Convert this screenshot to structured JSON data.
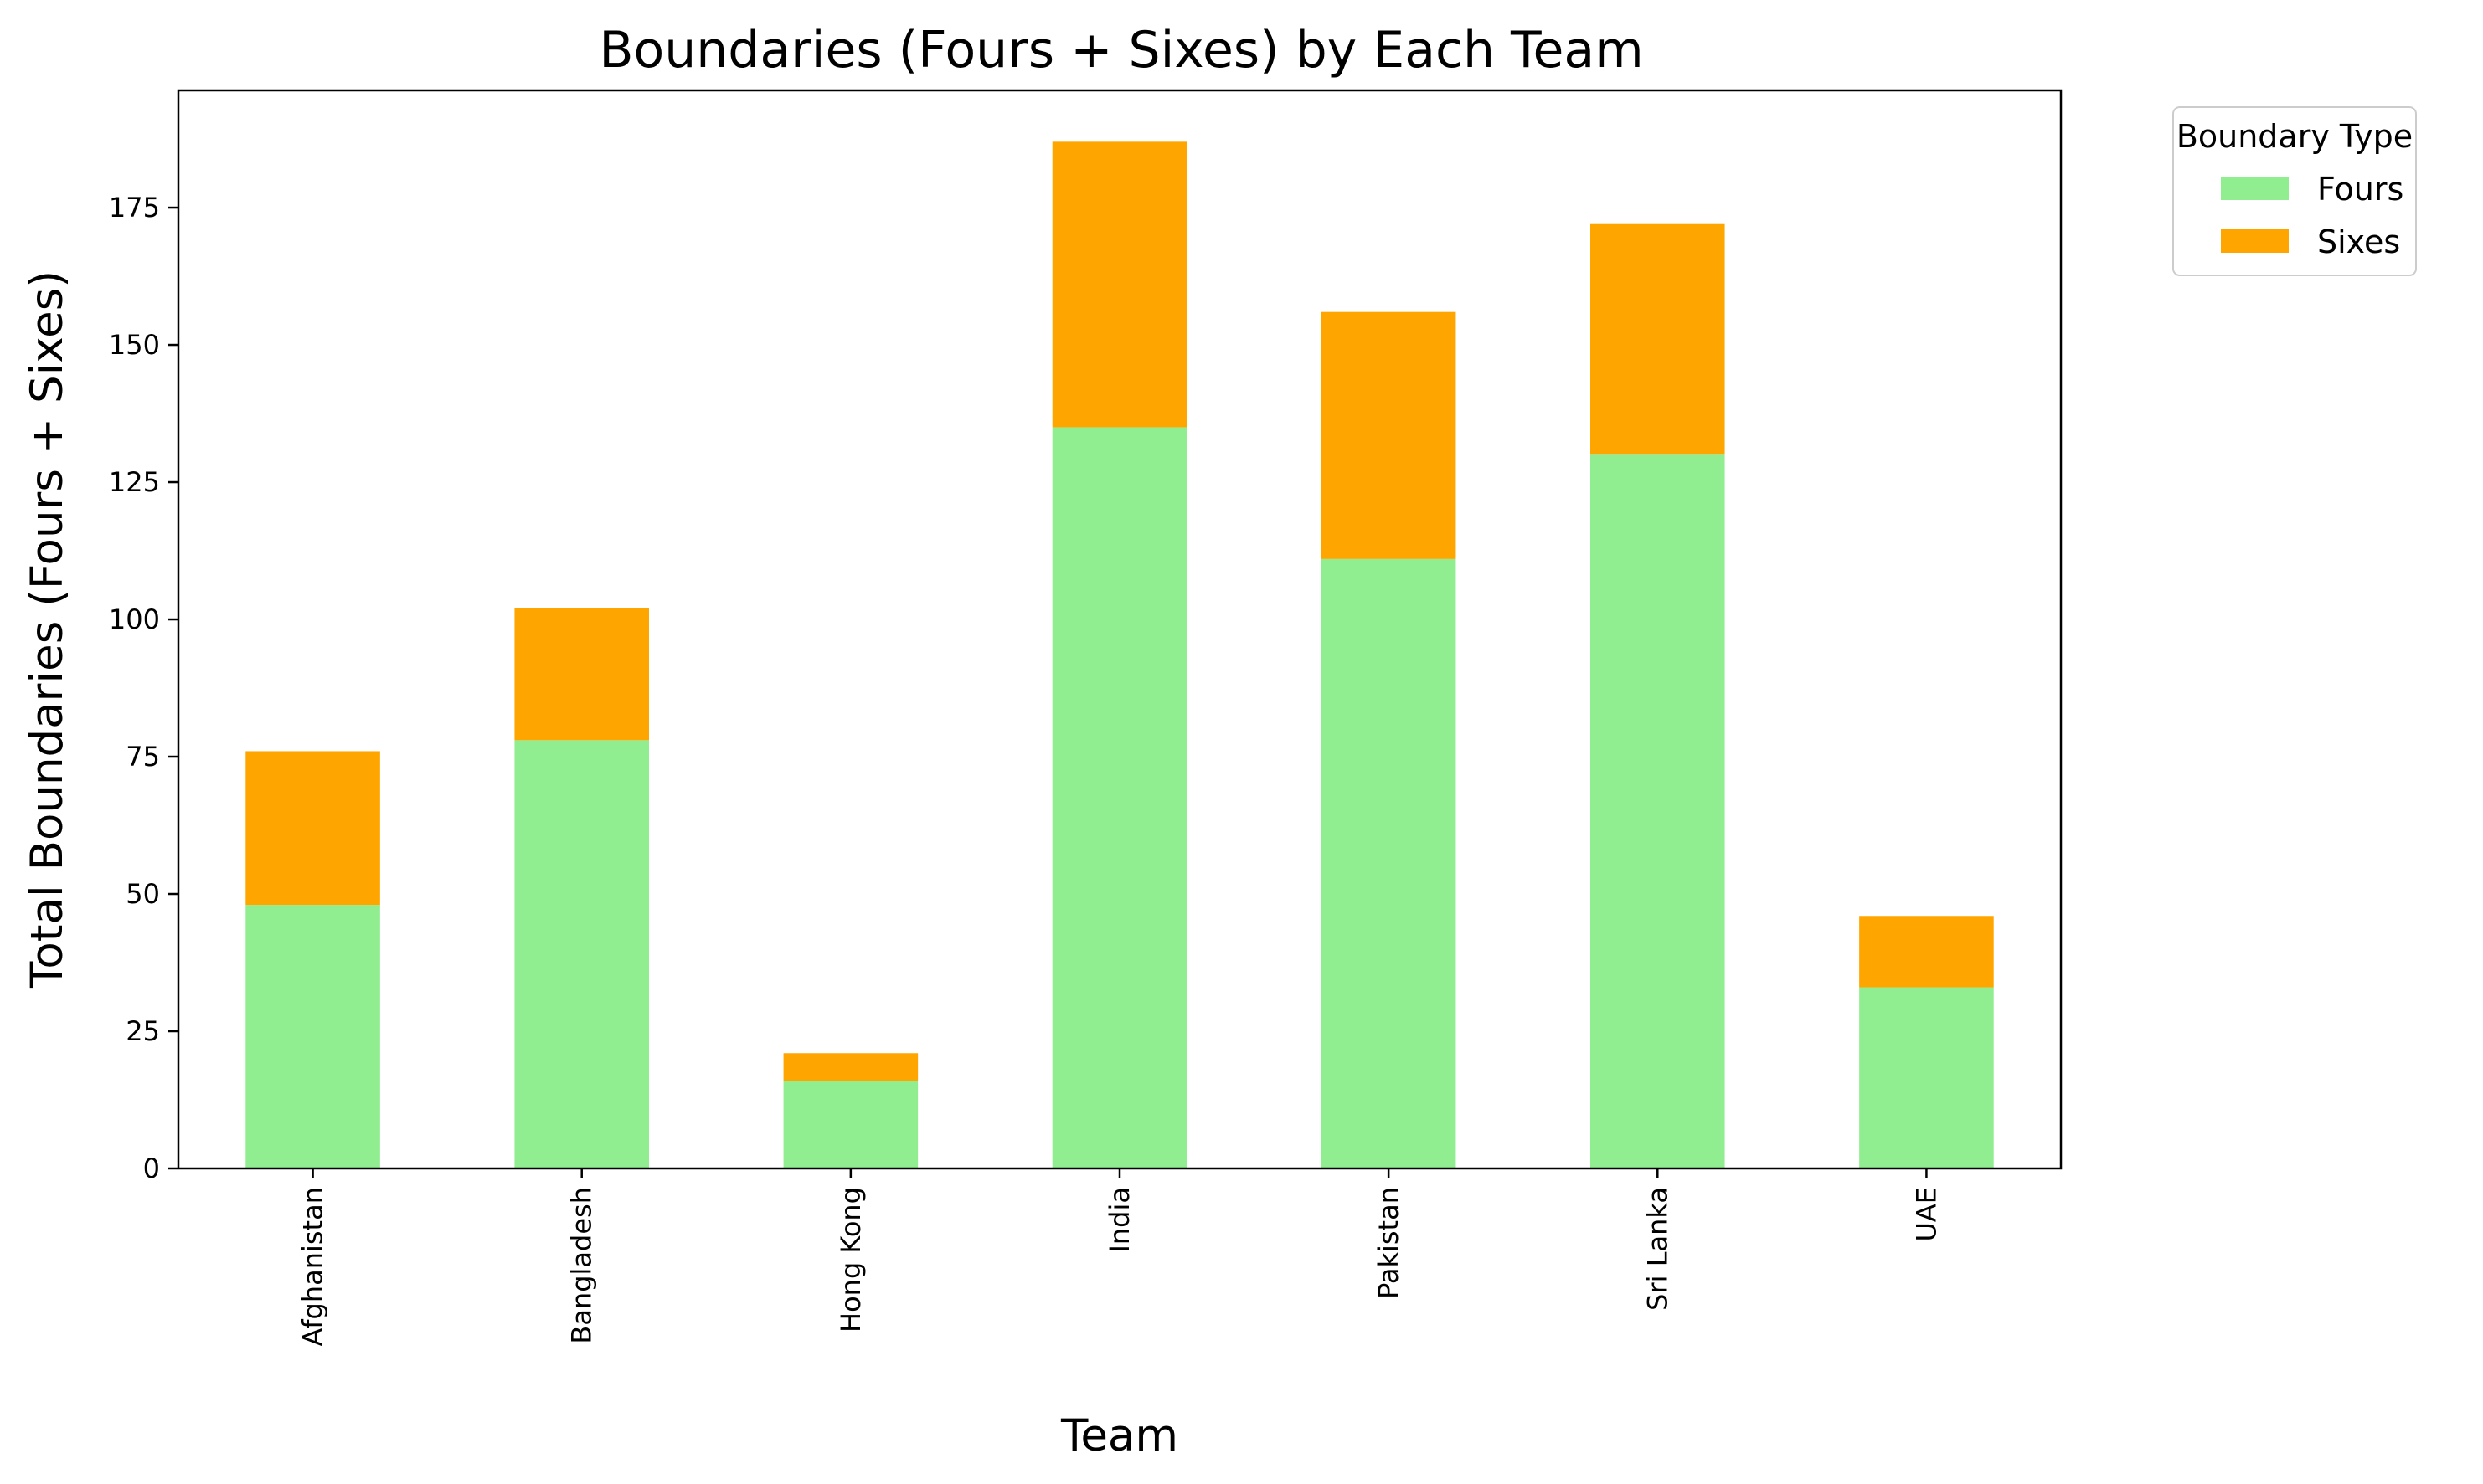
{
  "chart_data": {
    "type": "bar",
    "stacked": true,
    "title": "Boundaries (Fours + Sixes) by Each Team",
    "xlabel": "Team",
    "ylabel": "Total Boundaries (Fours + Sixes)",
    "categories": [
      "Afghanistan",
      "Bangladesh",
      "Hong Kong",
      "India",
      "Pakistan",
      "Sri Lanka",
      "UAE"
    ],
    "series": [
      {
        "name": "Fours",
        "color": "#90ee90",
        "values": [
          48,
          78,
          16,
          135,
          111,
          130,
          33
        ]
      },
      {
        "name": "Sixes",
        "color": "#ffa500",
        "values": [
          28,
          24,
          5,
          52,
          45,
          42,
          13
        ]
      }
    ],
    "ylim": [
      0,
      196.35
    ],
    "yticks": [
      0,
      25,
      50,
      75,
      100,
      125,
      150,
      175
    ],
    "legend": {
      "title": "Boundary Type",
      "placement": "outside-top-right"
    },
    "grid": false
  }
}
